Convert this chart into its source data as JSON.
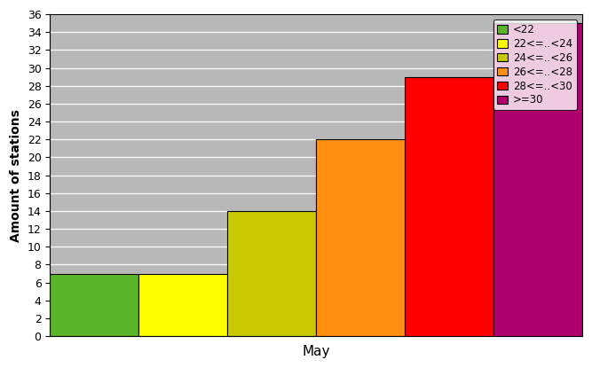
{
  "categories": [
    "<22",
    "22<=..<24",
    "24<=..<26",
    "26<=..<28",
    "28<=..<30",
    ">=30"
  ],
  "values": [
    7,
    7,
    14,
    22,
    29,
    35
  ],
  "colors": [
    "#5ab52a",
    "#ffff00",
    "#c8c800",
    "#ff9010",
    "#ff0000",
    "#b0006e"
  ],
  "xlabel": "May",
  "ylabel": "Amount of stations",
  "ylim": [
    0,
    36
  ],
  "yticks": [
    0,
    2,
    4,
    6,
    8,
    10,
    12,
    14,
    16,
    18,
    20,
    22,
    24,
    26,
    28,
    30,
    32,
    34,
    36
  ],
  "plot_bg_color": "#b8b8b8",
  "fig_bg_color": "#ffffff",
  "bar_width": 1.0,
  "grid_color": "#d8d8d8",
  "legend_bg": "#ffffff"
}
